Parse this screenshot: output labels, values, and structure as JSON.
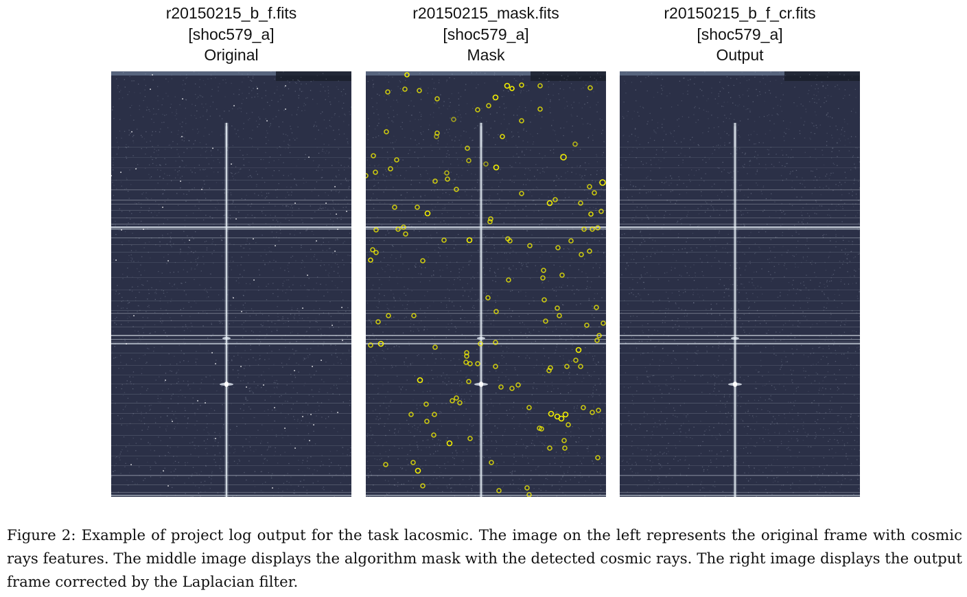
{
  "panels": [
    {
      "file": "r20150215_b_f.fits",
      "ext": "[shoc579_a]",
      "label": "Original"
    },
    {
      "file": "r20150215_mask.fits",
      "ext": "[shoc579_a]",
      "label": "Mask"
    },
    {
      "file": "r20150215_b_f_cr.fits",
      "ext": "[shoc579_a]",
      "label": "Output"
    }
  ],
  "caption": "Figure 2: Example of project log output for the task lacosmic. The image on the left represents the original frame with cosmic rays features. The middle image displays the algorithm mask with the detected cosmic rays. The right image displays the output frame corrected by the Laplacian filter.",
  "colors": {
    "background": "#2b3047",
    "trace": "#e6eef6",
    "mask_marker": "#f5f000"
  }
}
